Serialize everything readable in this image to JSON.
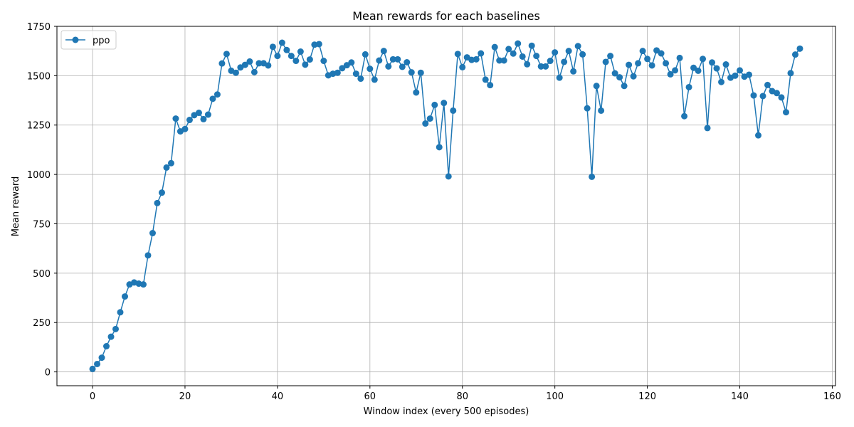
{
  "chart_data": {
    "type": "line",
    "title": "Mean rewards for each baselines",
    "xlabel": "Window index (every 500 episodes)",
    "ylabel": "Mean reward",
    "xlim": [
      -7.7,
      160.7
    ],
    "ylim": [
      -70,
      1750
    ],
    "xticks": [
      0,
      20,
      40,
      60,
      80,
      100,
      120,
      140,
      160
    ],
    "yticks": [
      0,
      250,
      500,
      750,
      1000,
      1250,
      1500,
      1750
    ],
    "grid": true,
    "legend_position": "top-left",
    "series": [
      {
        "name": "ppo",
        "color": "#1f77b4",
        "marker": "circle",
        "x": [
          0,
          1,
          2,
          3,
          4,
          5,
          6,
          7,
          8,
          9,
          10,
          11,
          12,
          13,
          14,
          15,
          16,
          17,
          18,
          19,
          20,
          21,
          22,
          23,
          24,
          25,
          26,
          27,
          28,
          29,
          30,
          31,
          32,
          33,
          34,
          35,
          36,
          37,
          38,
          39,
          40,
          41,
          42,
          43,
          44,
          45,
          46,
          47,
          48,
          49,
          50,
          51,
          52,
          53,
          54,
          55,
          56,
          57,
          58,
          59,
          60,
          61,
          62,
          63,
          64,
          65,
          66,
          67,
          68,
          69,
          70,
          71,
          72,
          73,
          74,
          75,
          76,
          77,
          78,
          79,
          80,
          81,
          82,
          83,
          84,
          85,
          86,
          87,
          88,
          89,
          90,
          91,
          92,
          93,
          94,
          95,
          96,
          97,
          98,
          99,
          100,
          101,
          102,
          103,
          104,
          105,
          106,
          107,
          108,
          109,
          110,
          111,
          112,
          113,
          114,
          115,
          116,
          117,
          118,
          119,
          120,
          121,
          122,
          123,
          124,
          125,
          126,
          127,
          128,
          129,
          130,
          131,
          132,
          133,
          134,
          135,
          136,
          137,
          138,
          139,
          140,
          141,
          142,
          143,
          144,
          145,
          146,
          147,
          148,
          149,
          150,
          151,
          152,
          153
        ],
        "values": [
          15,
          40,
          72,
          130,
          178,
          217,
          302,
          382,
          443,
          453,
          447,
          443,
          590,
          703,
          855,
          908,
          1035,
          1057,
          1283,
          1218,
          1230,
          1276,
          1300,
          1312,
          1280,
          1303,
          1383,
          1405,
          1562,
          1610,
          1525,
          1515,
          1542,
          1555,
          1572,
          1518,
          1563,
          1563,
          1552,
          1646,
          1600,
          1667,
          1630,
          1600,
          1575,
          1622,
          1556,
          1582,
          1657,
          1660,
          1575,
          1502,
          1510,
          1515,
          1538,
          1553,
          1567,
          1510,
          1485,
          1608,
          1535,
          1480,
          1577,
          1625,
          1547,
          1583,
          1583,
          1545,
          1568,
          1517,
          1415,
          1515,
          1258,
          1283,
          1352,
          1138,
          1362,
          990,
          1323,
          1610,
          1543,
          1593,
          1580,
          1583,
          1613,
          1480,
          1452,
          1645,
          1577,
          1577,
          1635,
          1612,
          1663,
          1597,
          1558,
          1652,
          1600,
          1547,
          1547,
          1575,
          1618,
          1490,
          1570,
          1625,
          1522,
          1650,
          1608,
          1335,
          988,
          1448,
          1323,
          1570,
          1600,
          1512,
          1492,
          1448,
          1555,
          1497,
          1563,
          1625,
          1585,
          1552,
          1628,
          1613,
          1563,
          1507,
          1527,
          1590,
          1295,
          1442,
          1540,
          1525,
          1585,
          1235,
          1567,
          1537,
          1468,
          1557,
          1490,
          1500,
          1527,
          1495,
          1505,
          1400,
          1198,
          1397,
          1453,
          1422,
          1412,
          1390,
          1315,
          1513,
          1607,
          1637
        ]
      }
    ]
  }
}
